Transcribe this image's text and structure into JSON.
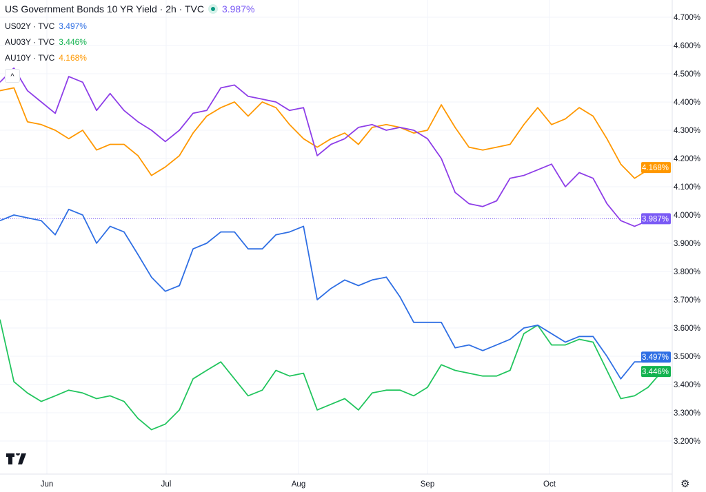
{
  "header": {
    "title": "US Government Bonds 10 YR Yield · 2h · TVC",
    "status": "market-open",
    "value": "3.987%"
  },
  "legend": [
    {
      "label": "US02Y · TVC",
      "value": "3.497%"
    },
    {
      "label": "AU03Y · TVC",
      "value": "3.446%"
    },
    {
      "label": "AU10Y · TVC",
      "value": "4.168%"
    }
  ],
  "icons": {
    "collapse": "chevron-up-icon",
    "logo": "tradingview-logo",
    "settings": "gear-icon"
  },
  "collapse_glyph": "^",
  "logo_text": "TV",
  "chart_data": {
    "type": "line",
    "title": "US Government Bonds 10 YR Yield · 2h · TVC",
    "x_unit": "days from Jun 1",
    "x": [
      -11.8,
      -8.3,
      -4.9,
      -1.4,
      2.1,
      5.5,
      9.0,
      12.5,
      15.9,
      19.4,
      22.9,
      26.3,
      29.8,
      33.1,
      36.3,
      39.5,
      42.8,
      46.0,
      49.2,
      52.5,
      55.7,
      58.9,
      62.2,
      65.5,
      68.8,
      72.1,
      75.4,
      78.7,
      82.1,
      85.4,
      88.7,
      92.0,
      95.4,
      98.8,
      102.2,
      105.6,
      109.0,
      112.3,
      115.7,
      119.1,
      122.5,
      125.9,
      129.3,
      132.7,
      136.1,
      139.5,
      142.9,
      146.2,
      149.6
    ],
    "xticks": [
      {
        "day": 0,
        "label": "Jun"
      },
      {
        "day": 30,
        "label": "Jul"
      },
      {
        "day": 61,
        "label": "Aug"
      },
      {
        "day": 92,
        "label": "Sep"
      },
      {
        "day": 122,
        "label": "Oct"
      }
    ],
    "yticks": [
      "3.200%",
      "3.300%",
      "3.400%",
      "3.500%",
      "3.600%",
      "3.700%",
      "3.800%",
      "3.900%",
      "4.000%",
      "4.100%",
      "4.200%",
      "4.300%",
      "4.400%",
      "4.500%",
      "4.600%",
      "4.700%"
    ],
    "ytick_values": [
      3.2,
      3.3,
      3.4,
      3.5,
      3.6,
      3.7,
      3.8,
      3.9,
      4.0,
      4.1,
      4.2,
      4.3,
      4.4,
      4.5,
      4.6,
      4.7
    ],
    "ylim": [
      3.2,
      4.7
    ],
    "grid": true,
    "series": [
      {
        "name": "US10Y",
        "color": "#8e3ee8",
        "last_label": "3.987%",
        "last_color": "#7a5af5",
        "last": 3.987,
        "values": [
          4.47,
          4.52,
          4.44,
          4.4,
          4.36,
          4.49,
          4.47,
          4.37,
          4.43,
          4.37,
          4.33,
          4.3,
          4.26,
          4.3,
          4.36,
          4.37,
          4.45,
          4.46,
          4.42,
          4.41,
          4.4,
          4.37,
          4.38,
          4.21,
          4.25,
          4.27,
          4.31,
          4.32,
          4.3,
          4.31,
          4.3,
          4.27,
          4.2,
          4.08,
          4.04,
          4.03,
          4.05,
          4.13,
          4.14,
          4.16,
          4.18,
          4.1,
          4.15,
          4.13,
          4.04,
          3.98,
          3.96,
          3.98,
          3.987
        ]
      },
      {
        "name": "AU10Y",
        "color": "#ff9800",
        "last_label": "4.168%",
        "last_color": "#ff9800",
        "last": 4.168,
        "values": [
          4.44,
          4.45,
          4.33,
          4.32,
          4.3,
          4.27,
          4.3,
          4.23,
          4.25,
          4.25,
          4.21,
          4.14,
          4.17,
          4.21,
          4.29,
          4.35,
          4.38,
          4.4,
          4.35,
          4.4,
          4.38,
          4.32,
          4.27,
          4.24,
          4.27,
          4.29,
          4.25,
          4.31,
          4.32,
          4.31,
          4.29,
          4.3,
          4.39,
          4.31,
          4.24,
          4.23,
          4.24,
          4.25,
          4.32,
          4.38,
          4.32,
          4.34,
          4.38,
          4.35,
          4.27,
          4.18,
          4.13,
          4.16,
          4.168
        ]
      },
      {
        "name": "US02Y",
        "color": "#2f6fe4",
        "last_label": "3.497%",
        "last_color": "#2f6fe4",
        "last": 3.497,
        "values": [
          3.98,
          4.0,
          3.99,
          3.98,
          3.93,
          4.02,
          4.0,
          3.9,
          3.96,
          3.94,
          3.86,
          3.78,
          3.73,
          3.75,
          3.88,
          3.9,
          3.94,
          3.94,
          3.88,
          3.88,
          3.93,
          3.94,
          3.96,
          3.7,
          3.74,
          3.77,
          3.75,
          3.77,
          3.78,
          3.71,
          3.62,
          3.62,
          3.62,
          3.53,
          3.54,
          3.52,
          3.54,
          3.56,
          3.6,
          3.61,
          3.58,
          3.55,
          3.57,
          3.57,
          3.5,
          3.42,
          3.48,
          3.48,
          3.497
        ]
      },
      {
        "name": "AU03Y",
        "color": "#22c55e",
        "last_label": "3.446%",
        "last_color": "#12b24f",
        "last": 3.446,
        "values": [
          3.63,
          3.41,
          3.37,
          3.34,
          3.36,
          3.38,
          3.37,
          3.35,
          3.36,
          3.34,
          3.28,
          3.24,
          3.26,
          3.31,
          3.42,
          3.45,
          3.48,
          3.42,
          3.36,
          3.38,
          3.45,
          3.43,
          3.44,
          3.31,
          3.33,
          3.35,
          3.31,
          3.37,
          3.38,
          3.38,
          3.36,
          3.39,
          3.47,
          3.45,
          3.44,
          3.43,
          3.43,
          3.45,
          3.58,
          3.61,
          3.54,
          3.54,
          3.56,
          3.55,
          3.45,
          3.35,
          3.36,
          3.39,
          3.446
        ]
      }
    ]
  }
}
